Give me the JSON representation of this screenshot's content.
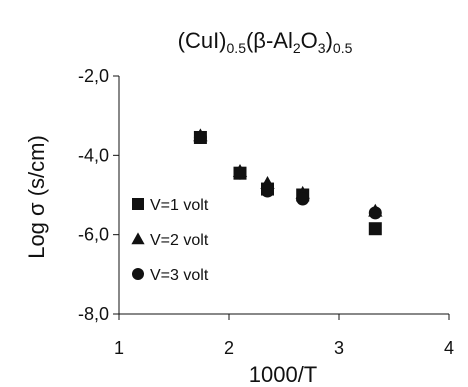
{
  "chart_data": {
    "type": "scatter",
    "title": {
      "parts": [
        {
          "text": "(CuI)",
          "sub": false
        },
        {
          "text": "0.5",
          "sub": true
        },
        {
          "text": "(β-Al",
          "sub": false
        },
        {
          "text": "2",
          "sub": true
        },
        {
          "text": "O",
          "sub": false
        },
        {
          "text": "3",
          "sub": true
        },
        {
          "text": ")",
          "sub": false
        },
        {
          "text": "0.5",
          "sub": true
        }
      ]
    },
    "xlabel": "1000/T",
    "ylabel": "Log σ (s/cm)",
    "xlim": [
      1,
      4
    ],
    "ylim": [
      -8,
      -2
    ],
    "x_ticks": [
      1,
      2,
      3,
      4
    ],
    "x_tick_labels": [
      "1",
      "2",
      "3",
      "4"
    ],
    "y_ticks": [
      -2,
      -4,
      -6,
      -8
    ],
    "y_tick_labels": [
      "-2,0",
      "-4,0",
      "-6,0",
      "-8,0"
    ],
    "grid": false,
    "legend_position": "left-middle",
    "series": [
      {
        "name": "V=1 volt",
        "marker": "square",
        "points": [
          {
            "x": 1.74,
            "y": -3.55
          },
          {
            "x": 2.1,
            "y": -4.45
          },
          {
            "x": 2.35,
            "y": -4.85
          },
          {
            "x": 2.67,
            "y": -5.0
          },
          {
            "x": 3.33,
            "y": -5.85
          }
        ]
      },
      {
        "name": "V=2 volt",
        "marker": "triangle",
        "points": [
          {
            "x": 1.74,
            "y": -3.5
          },
          {
            "x": 2.1,
            "y": -4.4
          },
          {
            "x": 2.35,
            "y": -4.7
          },
          {
            "x": 2.67,
            "y": -4.95
          },
          {
            "x": 3.33,
            "y": -5.4
          }
        ]
      },
      {
        "name": "V=3 volt",
        "marker": "circle",
        "points": [
          {
            "x": 1.74,
            "y": -3.55
          },
          {
            "x": 2.1,
            "y": -4.45
          },
          {
            "x": 2.35,
            "y": -4.9
          },
          {
            "x": 2.67,
            "y": -5.1
          },
          {
            "x": 3.33,
            "y": -5.45
          }
        ]
      }
    ],
    "colors": {
      "marker": "#111111",
      "axis": "#111111"
    }
  }
}
